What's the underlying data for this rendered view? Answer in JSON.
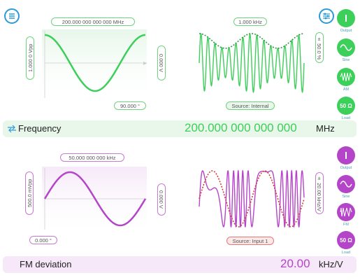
{
  "top": {
    "frequency_label": "200.000 000 000 000 MHz",
    "amplitude_label": "1.000 0 Vpp",
    "offset_label": "0.000 V",
    "phase_label": "90.000 °",
    "mod_freq_label": "1.000 kHz",
    "mod_depth_label": "± 50.0 %",
    "source_label": "Source: Internal",
    "bar_title": "Frequency",
    "bar_value": "200.000 000 000 000",
    "bar_unit": "MHz",
    "side": {
      "output_label": "Output",
      "sine_label": "Sine",
      "am_label": "AM",
      "load_button": "50 Ω",
      "load_label": "Load"
    }
  },
  "bottom": {
    "frequency_label": "50.000 000 000 kHz",
    "amplitude_label": "500.0 mVpp",
    "offset_label": "0.000 V",
    "phase_label": "0.000 °",
    "sensitivity_label": "± 20.00 kHz/V",
    "source_label": "Source: Input 1",
    "bar_title": "FM deviation",
    "bar_value": "20.00",
    "bar_unit": "kHz/V",
    "side": {
      "output_label": "Output",
      "sine_label": "Sine",
      "fm_label": "FM",
      "load_button": "50 Ω",
      "load_label": "Load"
    }
  },
  "colors": {
    "green": "#3ccf5a",
    "green_light": "#e8f7ea",
    "purple": "#b444c8",
    "purple_light": "#f6e8f8",
    "red_dotted": "#d63a3a",
    "value_green": "#3ccf5a",
    "value_purple": "#b444c8",
    "menu_blue": "#2a9bd8"
  },
  "icons": {
    "menu": "hamburger-menu-icon",
    "settings": "sliders-icon",
    "swap": "swap-arrows-icon"
  }
}
